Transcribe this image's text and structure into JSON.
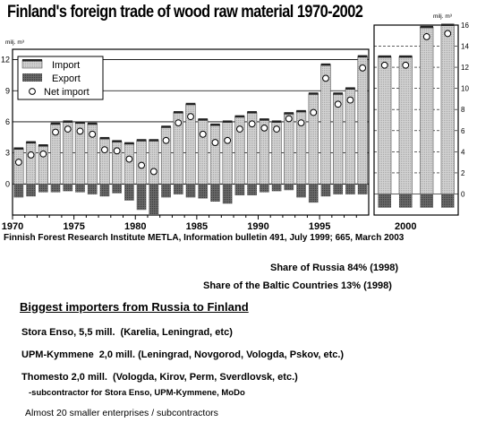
{
  "title": "Finland's foreign trade of wood raw material 1970-2002",
  "source": "Finnish Forest Research Institute METLA, Information bulletin 491, July 1999; 665, March 2003",
  "shares": [
    {
      "text": "Share of Russia 84%  (1998)"
    },
    {
      "text": "Share of the Baltic Countries 13%  (1998)"
    }
  ],
  "importers": {
    "heading": "Biggest importers from Russia to Finland",
    "items": [
      {
        "company": "Stora Enso, 5,5 mill.",
        "regions": "(Karelia, Leningrad, etc)"
      },
      {
        "company": "UPM-Kymmene",
        "regions": "2,0 mill. (Leningrad, Novgorod, Vologda, Pskov, etc.)"
      },
      {
        "company": "Thomesto  2,0 mill.",
        "regions": "(Vologda, Kirov, Perm, Sverdlovsk, etc.)"
      }
    ],
    "note": "-subcontractor for Stora Enso, UPM-Kymmene, MoDo",
    "small": "Almost 20 smaller enterprises / subcontractors"
  },
  "chart_data": [
    {
      "type": "bar",
      "ylabel": "milj. m³",
      "ylim": [
        -3,
        13
      ],
      "yticks": [
        0,
        3,
        6,
        9,
        12
      ],
      "xticks": [
        1970,
        1975,
        1980,
        1985,
        1990,
        1995
      ],
      "legend": {
        "placement": "top-left",
        "entries": [
          "Import",
          "Export",
          "Net import"
        ]
      },
      "x": [
        1970,
        1971,
        1972,
        1973,
        1974,
        1975,
        1976,
        1977,
        1978,
        1979,
        1980,
        1981,
        1982,
        1983,
        1984,
        1985,
        1986,
        1987,
        1988,
        1989,
        1990,
        1991,
        1992,
        1993,
        1994,
        1995,
        1996,
        1997,
        1998
      ],
      "series": [
        {
          "name": "Import",
          "type": "bar",
          "values": [
            3.4,
            4.0,
            3.7,
            5.8,
            6.0,
            5.9,
            5.8,
            4.4,
            4.1,
            3.9,
            4.2,
            4.2,
            5.5,
            6.9,
            7.7,
            6.2,
            5.7,
            6.0,
            6.5,
            6.9,
            6.2,
            6.0,
            6.8,
            7.0,
            8.7,
            11.5,
            8.7,
            9.2,
            12.3
          ]
        },
        {
          "name": "Export",
          "type": "bar",
          "values": [
            -1.3,
            -1.2,
            -0.8,
            -0.8,
            -0.7,
            -0.8,
            -1.0,
            -1.2,
            -0.9,
            -1.6,
            -2.5,
            -3.0,
            -1.3,
            -1.0,
            -1.3,
            -1.4,
            -1.7,
            -1.9,
            -1.1,
            -1.1,
            -0.8,
            -0.7,
            -0.6,
            -1.3,
            -1.8,
            -1.2,
            -1.0,
            -1.0,
            -1.0
          ]
        },
        {
          "name": "Net import",
          "type": "scatter",
          "values": [
            2.1,
            2.8,
            2.9,
            5.0,
            5.3,
            5.1,
            4.8,
            3.3,
            3.2,
            2.4,
            1.8,
            1.2,
            4.2,
            5.9,
            6.5,
            4.8,
            4.0,
            4.2,
            5.3,
            5.8,
            5.4,
            5.3,
            6.3,
            5.9,
            6.9,
            10.2,
            7.7,
            8.1,
            11.2
          ]
        }
      ]
    },
    {
      "type": "bar",
      "ylabel": "milj. m³",
      "ylim": [
        -2,
        16
      ],
      "yticks": [
        0,
        2,
        4,
        6,
        8,
        10,
        12,
        14,
        16
      ],
      "xticks": [
        2000
      ],
      "x": [
        1999,
        2000,
        2001,
        2002
      ],
      "series": [
        {
          "name": "Import",
          "type": "bar",
          "values": [
            13.0,
            13.0,
            15.8,
            16.0
          ]
        },
        {
          "name": "Export",
          "type": "bar",
          "values": [
            -1.3,
            -1.3,
            -1.3,
            -1.3
          ]
        },
        {
          "name": "Net import",
          "type": "scatter",
          "values": [
            12.2,
            12.2,
            14.9,
            15.2
          ]
        }
      ]
    }
  ]
}
